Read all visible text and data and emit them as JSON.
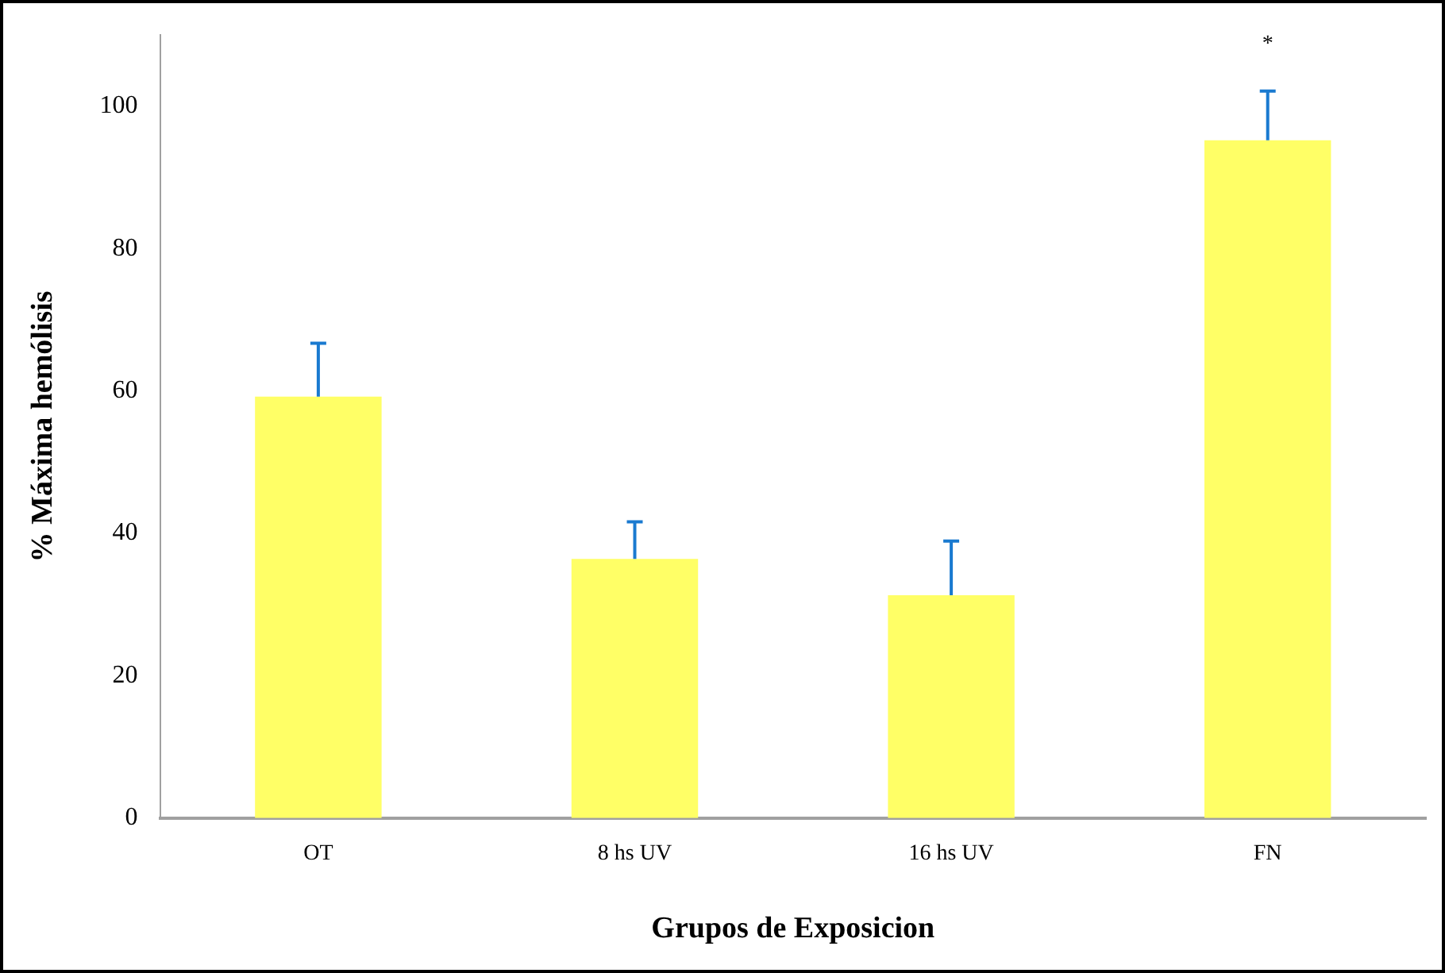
{
  "chart_data": {
    "type": "bar",
    "xlabel": "Grupos de Exposicion",
    "ylabel": "% Máxima hemólisis",
    "categories": [
      "OT",
      "8 hs UV",
      "16 hs UV",
      "FN"
    ],
    "values": [
      59.2,
      36.4,
      31.3,
      95.2
    ],
    "errors": [
      [
        59.2,
        66.7
      ],
      [
        36.4,
        41.6
      ],
      [
        31.3,
        38.9
      ],
      [
        95.2,
        102.1
      ]
    ],
    "color": "#ffff66",
    "ylim": [
      0,
      110
    ],
    "yticks": [
      0,
      20,
      40,
      60,
      80,
      100
    ],
    "grid": false,
    "legend": false,
    "annotations": [
      "*"
    ]
  }
}
